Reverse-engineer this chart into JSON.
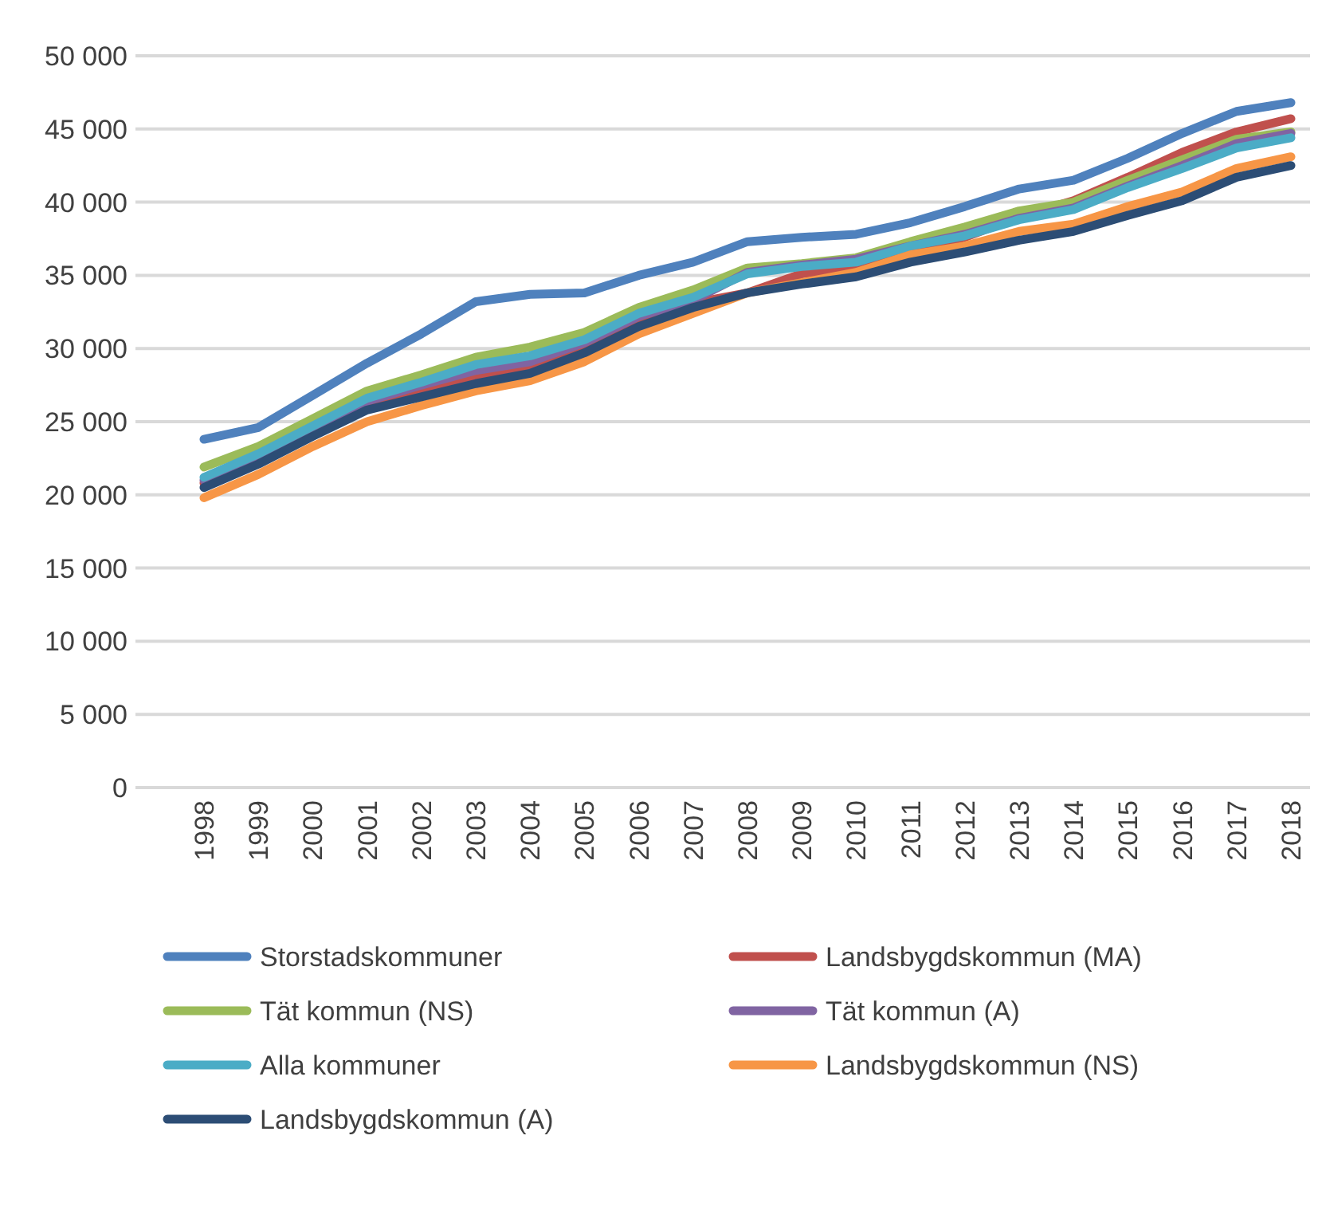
{
  "chart_data": {
    "type": "line",
    "categories": [
      "1998",
      "1999",
      "2000",
      "2001",
      "2002",
      "2003",
      "2004",
      "2005",
      "2006",
      "2007",
      "2008",
      "2009",
      "2010",
      "2011",
      "2012",
      "2013",
      "2014",
      "2015",
      "2016",
      "2017",
      "2018"
    ],
    "ylim": [
      0,
      50000
    ],
    "yticks": [
      {
        "value": 0,
        "label": "0"
      },
      {
        "value": 5000,
        "label": "5 000"
      },
      {
        "value": 10000,
        "label": "10 000"
      },
      {
        "value": 15000,
        "label": "15 000"
      },
      {
        "value": 20000,
        "label": "20 000"
      },
      {
        "value": 25000,
        "label": "25 000"
      },
      {
        "value": 30000,
        "label": "30 000"
      },
      {
        "value": 35000,
        "label": "35 000"
      },
      {
        "value": 40000,
        "label": "40 000"
      },
      {
        "value": 45000,
        "label": "45 000"
      },
      {
        "value": 50000,
        "label": "50 000"
      }
    ],
    "grid": "y",
    "legend": "bottom",
    "marker": "none",
    "line_style": "solid",
    "series": [
      {
        "name": "Storstadskommuner",
        "color": "#4f81bd",
        "values": [
          23800,
          24600,
          26800,
          29000,
          31000,
          33200,
          33700,
          33800,
          35000,
          35900,
          37300,
          37600,
          37800,
          38600,
          39700,
          40900,
          41500,
          43000,
          44700,
          46200,
          46800
        ]
      },
      {
        "name": "Landsbygdskommun (MA)",
        "color": "#c0504d",
        "values": [
          20800,
          22400,
          24200,
          26100,
          27100,
          28100,
          28700,
          30100,
          31800,
          33100,
          33800,
          35100,
          35600,
          36700,
          37600,
          39000,
          40100,
          41700,
          43400,
          44800,
          45700
        ]
      },
      {
        "name": "Tät kommun (NS)",
        "color": "#9bbb59",
        "values": [
          21900,
          23300,
          25200,
          27100,
          28200,
          29400,
          30100,
          31100,
          32800,
          34000,
          35500,
          35800,
          36200,
          37300,
          38300,
          39400,
          40000,
          41500,
          42900,
          44300,
          44800
        ]
      },
      {
        "name": "Tät kommun (A)",
        "color": "#8064a2",
        "values": [
          21000,
          22600,
          24500,
          26400,
          27500,
          28500,
          29100,
          30400,
          32200,
          33300,
          35200,
          35700,
          36100,
          37000,
          37800,
          38900,
          39600,
          41100,
          42500,
          44000,
          44700
        ]
      },
      {
        "name": "Alla kommuner",
        "color": "#4bacc6",
        "values": [
          21200,
          22800,
          24700,
          26600,
          27700,
          28900,
          29500,
          30600,
          32400,
          33500,
          35100,
          35600,
          35900,
          37000,
          37700,
          38800,
          39500,
          41000,
          42300,
          43700,
          44400
        ]
      },
      {
        "name": "Landsbygdskommun (NS)",
        "color": "#f79646",
        "values": [
          19800,
          21400,
          23300,
          25000,
          26100,
          27100,
          27800,
          29100,
          31000,
          32400,
          33800,
          34500,
          35200,
          36400,
          37000,
          38000,
          38500,
          39700,
          40700,
          42300,
          43100
        ]
      },
      {
        "name": "Landsbygdskommun (A)",
        "color": "#2c4d75",
        "values": [
          20500,
          22100,
          24000,
          25800,
          26700,
          27600,
          28300,
          29700,
          31500,
          32800,
          33800,
          34400,
          34900,
          35900,
          36600,
          37400,
          38000,
          39100,
          40100,
          41700,
          42500
        ]
      }
    ]
  }
}
